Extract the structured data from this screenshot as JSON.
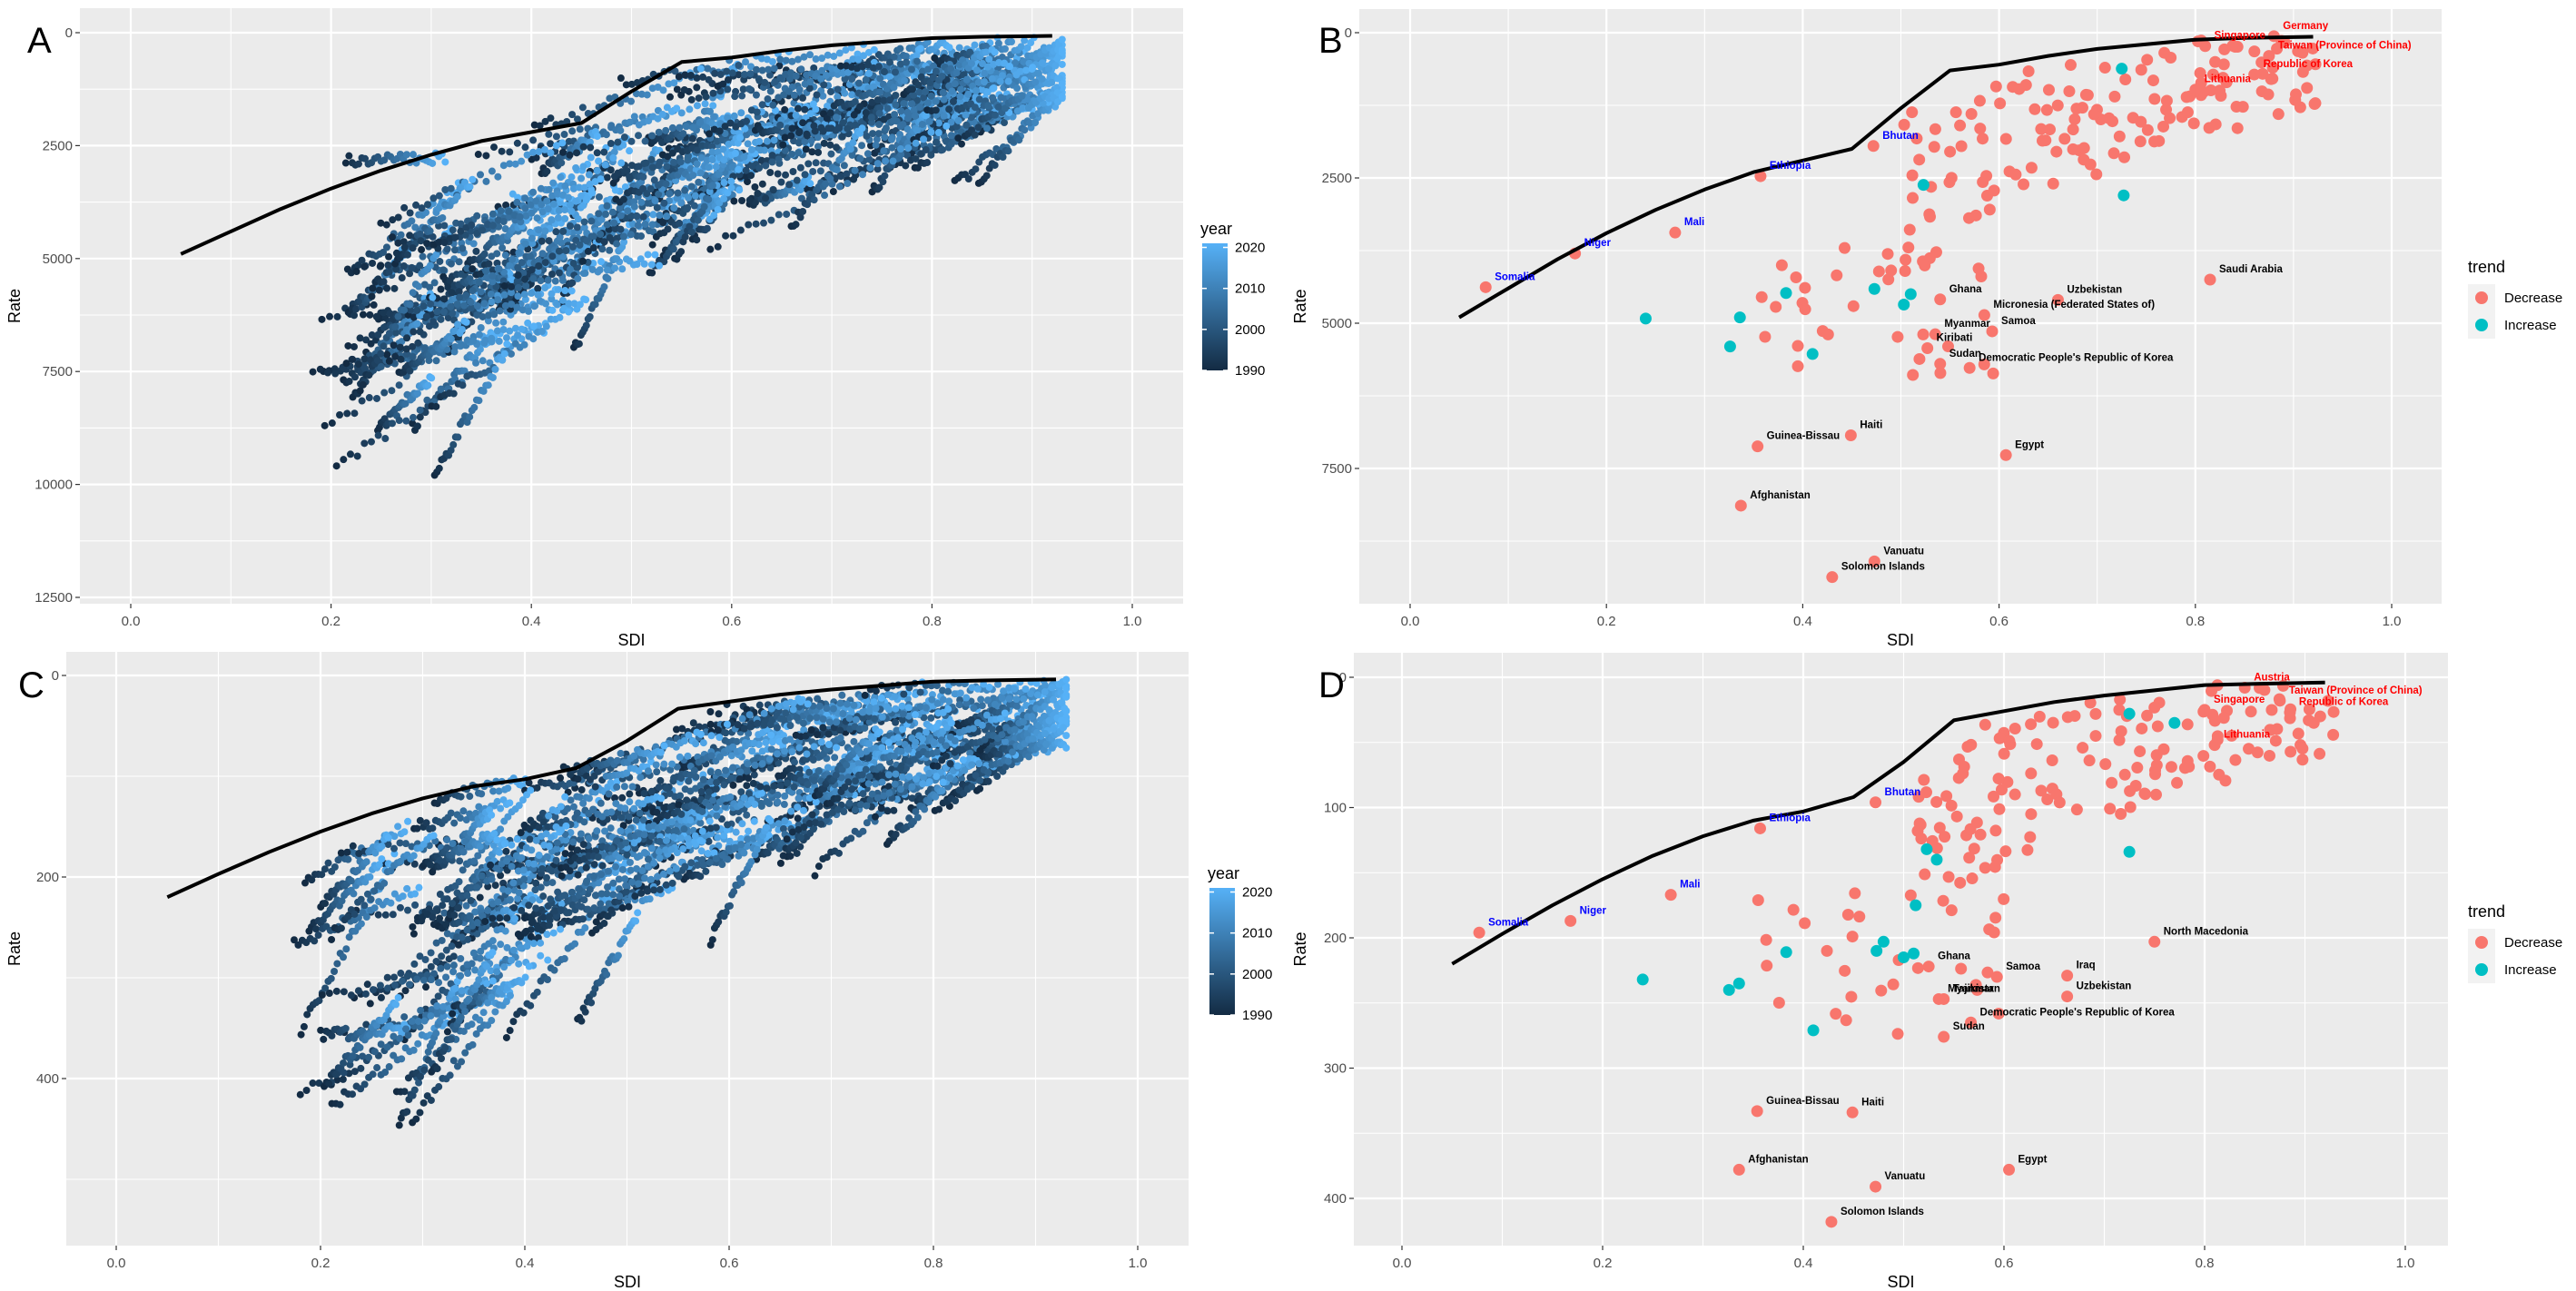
{
  "colors": {
    "panel_bg": "#EBEBEB",
    "year_low": "#132B43",
    "year_high": "#56B1F7",
    "decrease": "#F8766D",
    "increase": "#00BFC4",
    "label_high_sdi": "#FF0000",
    "label_low_sdi": "#0000FF",
    "label_other": "#000000",
    "frontier": "#000000"
  },
  "chart_data": [
    {
      "panel": "A",
      "type": "scatter",
      "title": "",
      "xlabel": "SDI",
      "ylabel": "Rate",
      "xlim": [
        -0.05,
        1.05
      ],
      "ylim": [
        12500,
        0
      ],
      "y_reversed": true,
      "x_ticks": [
        "0.0",
        "0.2",
        "0.4",
        "0.6",
        "0.8",
        "1.0"
      ],
      "x_tick_values": [
        0,
        0.2,
        0.4,
        0.6,
        0.8,
        1.0
      ],
      "y_ticks": [
        "0",
        "2500",
        "5000",
        "7500",
        "10000",
        "12500"
      ],
      "y_tick_values": [
        0,
        2500,
        5000,
        7500,
        10000,
        12500
      ],
      "grid": true,
      "legend": {
        "title": "year",
        "type": "colorbar",
        "position": "right",
        "labels": [
          "2020",
          "2010",
          "2000",
          "1990"
        ],
        "values": [
          2020,
          2010,
          2000,
          1990
        ],
        "range": [
          1990,
          2021
        ]
      },
      "frontier": {
        "x": [
          0.05,
          0.1,
          0.15,
          0.2,
          0.25,
          0.3,
          0.35,
          0.4,
          0.45,
          0.5,
          0.55,
          0.6,
          0.65,
          0.7,
          0.75,
          0.8,
          0.85,
          0.92
        ],
        "y": [
          4900,
          4400,
          3900,
          3450,
          3050,
          2700,
          2400,
          2200,
          2000,
          1300,
          650,
          550,
          400,
          280,
          200,
          120,
          90,
          70
        ]
      },
      "series_description": "Country trajectories 1990-2021, points colored by year"
    },
    {
      "panel": "B",
      "type": "scatter",
      "title": "",
      "xlabel": "SDI",
      "ylabel": "Rate",
      "xlim": [
        -0.05,
        1.05
      ],
      "ylim": [
        9500,
        0
      ],
      "y_reversed": true,
      "x_ticks": [
        "0.0",
        "0.2",
        "0.4",
        "0.6",
        "0.8",
        "1.0"
      ],
      "x_tick_values": [
        0,
        0.2,
        0.4,
        0.6,
        0.8,
        1.0
      ],
      "y_ticks": [
        "0",
        "2500",
        "5000",
        "7500"
      ],
      "y_tick_values": [
        0,
        2500,
        5000,
        7500
      ],
      "grid": true,
      "legend": {
        "title": "trend",
        "type": "discrete",
        "position": "right",
        "entries": [
          "Decrease",
          "Increase"
        ]
      },
      "frontier": {
        "x": [
          0.05,
          0.1,
          0.15,
          0.2,
          0.25,
          0.3,
          0.35,
          0.4,
          0.45,
          0.5,
          0.55,
          0.6,
          0.65,
          0.7,
          0.75,
          0.8,
          0.85,
          0.92
        ],
        "y": [
          4900,
          4400,
          3900,
          3450,
          3050,
          2700,
          2400,
          2200,
          2000,
          1300,
          650,
          550,
          400,
          280,
          200,
          120,
          90,
          70
        ]
      },
      "labeled_points": [
        {
          "name": "Germany",
          "x": 0.88,
          "y": 60,
          "trend": "Decrease",
          "group": "high"
        },
        {
          "name": "Singapore",
          "x": 0.81,
          "y": 230,
          "trend": "Decrease",
          "group": "high"
        },
        {
          "name": "Taiwan (Province of China)",
          "x": 0.875,
          "y": 400,
          "trend": "Decrease",
          "group": "high"
        },
        {
          "name": "Republic of Korea",
          "x": 0.86,
          "y": 720,
          "trend": "Decrease",
          "group": "high"
        },
        {
          "name": "Lithuania",
          "x": 0.8,
          "y": 980,
          "trend": "Decrease",
          "group": "high"
        },
        {
          "name": "Somalia",
          "x": 0.077,
          "y": 4380,
          "trend": "Decrease",
          "group": "low"
        },
        {
          "name": "Niger",
          "x": 0.168,
          "y": 3800,
          "trend": "Decrease",
          "group": "low"
        },
        {
          "name": "Mali",
          "x": 0.27,
          "y": 3440,
          "trend": "Decrease",
          "group": "low"
        },
        {
          "name": "Ethiopia",
          "x": 0.357,
          "y": 2470,
          "trend": "Decrease",
          "group": "low"
        },
        {
          "name": "Bhutan",
          "x": 0.472,
          "y": 1950,
          "trend": "Decrease",
          "group": "low"
        },
        {
          "name": "Saudi Arabia",
          "x": 0.815,
          "y": 4250,
          "trend": "Decrease",
          "group": "other"
        },
        {
          "name": "Uzbekistan",
          "x": 0.66,
          "y": 4600,
          "trend": "Decrease",
          "group": "other"
        },
        {
          "name": "Ghana",
          "x": 0.54,
          "y": 4590,
          "trend": "Decrease",
          "group": "other"
        },
        {
          "name": "Myanmar",
          "x": 0.535,
          "y": 5190,
          "trend": "Decrease",
          "group": "other"
        },
        {
          "name": "Micronesia (Federated States of)",
          "x": 0.585,
          "y": 4860,
          "trend": "Decrease",
          "group": "other"
        },
        {
          "name": "Kiribati",
          "x": 0.527,
          "y": 5430,
          "trend": "Decrease",
          "group": "other"
        },
        {
          "name": "Samoa",
          "x": 0.593,
          "y": 5140,
          "trend": "Decrease",
          "group": "other"
        },
        {
          "name": "Sudan",
          "x": 0.54,
          "y": 5700,
          "trend": "Decrease",
          "group": "other"
        },
        {
          "name": "Democratic People's Republic of Korea",
          "x": 0.57,
          "y": 5770,
          "trend": "Decrease",
          "group": "other"
        },
        {
          "name": "Haiti",
          "x": 0.449,
          "y": 6930,
          "trend": "Decrease",
          "group": "other"
        },
        {
          "name": "Guinea-Bissau",
          "x": 0.354,
          "y": 7120,
          "trend": "Decrease",
          "group": "other"
        },
        {
          "name": "Egypt",
          "x": 0.607,
          "y": 7270,
          "trend": "Decrease",
          "group": "other"
        },
        {
          "name": "Afghanistan",
          "x": 0.337,
          "y": 8140,
          "trend": "Decrease",
          "group": "other"
        },
        {
          "name": "Vanuatu",
          "x": 0.473,
          "y": 9100,
          "trend": "Decrease",
          "group": "other"
        },
        {
          "name": "Solomon Islands",
          "x": 0.43,
          "y": 9370,
          "trend": "Decrease",
          "group": "other"
        }
      ],
      "increase_points": [
        {
          "x": 0.725,
          "y": 620
        },
        {
          "x": 0.523,
          "y": 2620
        },
        {
          "x": 0.727,
          "y": 2800
        },
        {
          "x": 0.24,
          "y": 4920
        },
        {
          "x": 0.336,
          "y": 4900
        },
        {
          "x": 0.383,
          "y": 4480
        },
        {
          "x": 0.473,
          "y": 4410
        },
        {
          "x": 0.51,
          "y": 4500
        },
        {
          "x": 0.503,
          "y": 4680
        },
        {
          "x": 0.326,
          "y": 5400
        },
        {
          "x": 0.41,
          "y": 5530
        }
      ]
    },
    {
      "panel": "C",
      "type": "scatter",
      "title": "",
      "xlabel": "SDI",
      "ylabel": "Rate",
      "xlim": [
        -0.05,
        1.05
      ],
      "ylim": [
        560,
        0
      ],
      "y_reversed": true,
      "x_ticks": [
        "0.0",
        "0.2",
        "0.4",
        "0.6",
        "0.8",
        "1.0"
      ],
      "x_tick_values": [
        0,
        0.2,
        0.4,
        0.6,
        0.8,
        1.0
      ],
      "y_ticks": [
        "0",
        "200",
        "400"
      ],
      "y_tick_values": [
        0,
        200,
        400
      ],
      "grid": true,
      "legend": {
        "title": "year",
        "type": "colorbar",
        "position": "right",
        "labels": [
          "2020",
          "2010",
          "2000",
          "1990"
        ],
        "values": [
          2020,
          2010,
          2000,
          1990
        ],
        "range": [
          1990,
          2021
        ]
      },
      "frontier": {
        "x": [
          0.05,
          0.1,
          0.15,
          0.2,
          0.25,
          0.3,
          0.35,
          0.4,
          0.45,
          0.5,
          0.55,
          0.6,
          0.65,
          0.7,
          0.75,
          0.8,
          0.85,
          0.92
        ],
        "y": [
          220,
          197,
          175,
          155,
          137,
          122,
          110,
          103,
          92,
          65,
          33,
          26,
          19,
          14,
          10,
          6,
          5,
          4
        ]
      },
      "series_description": "Country trajectories 1990-2021, points colored by year"
    },
    {
      "panel": "D",
      "type": "scatter",
      "title": "",
      "xlabel": "SDI",
      "ylabel": "Rate",
      "xlim": [
        -0.05,
        1.05
      ],
      "ylim": [
        435,
        0
      ],
      "y_reversed": true,
      "x_ticks": [
        "0.0",
        "0.2",
        "0.4",
        "0.6",
        "0.8",
        "1.0"
      ],
      "x_tick_values": [
        0,
        0.2,
        0.4,
        0.6,
        0.8,
        1.0
      ],
      "y_ticks": [
        "0",
        "100",
        "200",
        "300",
        "400"
      ],
      "y_tick_values": [
        0,
        100,
        200,
        300,
        400
      ],
      "grid": true,
      "legend": {
        "title": "trend",
        "type": "discrete",
        "position": "right",
        "entries": [
          "Decrease",
          "Increase"
        ]
      },
      "frontier": {
        "x": [
          0.05,
          0.1,
          0.15,
          0.2,
          0.25,
          0.3,
          0.35,
          0.4,
          0.45,
          0.5,
          0.55,
          0.6,
          0.65,
          0.7,
          0.75,
          0.8,
          0.85,
          0.92
        ],
        "y": [
          220,
          197,
          175,
          155,
          137,
          122,
          110,
          103,
          92,
          65,
          33,
          26,
          19,
          14,
          10,
          6,
          5,
          4
        ]
      },
      "labeled_points": [
        {
          "name": "Austria",
          "x": 0.84,
          "y": 8,
          "trend": "Decrease",
          "group": "high"
        },
        {
          "name": "Singapore",
          "x": 0.8,
          "y": 25,
          "trend": "Decrease",
          "group": "high"
        },
        {
          "name": "Taiwan (Province of China)",
          "x": 0.875,
          "y": 18,
          "trend": "Decrease",
          "group": "high"
        },
        {
          "name": "Republic of Korea",
          "x": 0.885,
          "y": 27,
          "trend": "Decrease",
          "group": "high"
        },
        {
          "name": "Lithuania",
          "x": 0.81,
          "y": 52,
          "trend": "Decrease",
          "group": "high"
        },
        {
          "name": "Somalia",
          "x": 0.077,
          "y": 196,
          "trend": "Decrease",
          "group": "low"
        },
        {
          "name": "Niger",
          "x": 0.168,
          "y": 187,
          "trend": "Decrease",
          "group": "low"
        },
        {
          "name": "Mali",
          "x": 0.268,
          "y": 167,
          "trend": "Decrease",
          "group": "low"
        },
        {
          "name": "Ethiopia",
          "x": 0.357,
          "y": 116,
          "trend": "Decrease",
          "group": "low"
        },
        {
          "name": "Bhutan",
          "x": 0.472,
          "y": 96,
          "trend": "Decrease",
          "group": "low"
        },
        {
          "name": "North Macedonia",
          "x": 0.75,
          "y": 203,
          "trend": "Decrease",
          "group": "other"
        },
        {
          "name": "Ghana",
          "x": 0.525,
          "y": 222,
          "trend": "Decrease",
          "group": "other"
        },
        {
          "name": "Samoa",
          "x": 0.593,
          "y": 230,
          "trend": "Decrease",
          "group": "other"
        },
        {
          "name": "Iraq",
          "x": 0.663,
          "y": 229,
          "trend": "Decrease",
          "group": "other"
        },
        {
          "name": "Uzbekistan",
          "x": 0.663,
          "y": 245,
          "trend": "Decrease",
          "group": "other"
        },
        {
          "name": "Myanmar",
          "x": 0.535,
          "y": 247,
          "trend": "Decrease",
          "group": "other"
        },
        {
          "name": "Tajikistan",
          "x": 0.54,
          "y": 247,
          "trend": "Decrease",
          "group": "other"
        },
        {
          "name": "Democratic People's Republic of Korea",
          "x": 0.567,
          "y": 265,
          "trend": "Decrease",
          "group": "other"
        },
        {
          "name": "Sudan",
          "x": 0.54,
          "y": 276,
          "trend": "Decrease",
          "group": "other"
        },
        {
          "name": "Guinea-Bissau",
          "x": 0.354,
          "y": 333,
          "trend": "Decrease",
          "group": "other"
        },
        {
          "name": "Haiti",
          "x": 0.449,
          "y": 334,
          "trend": "Decrease",
          "group": "other"
        },
        {
          "name": "Afghanistan",
          "x": 0.336,
          "y": 378,
          "trend": "Decrease",
          "group": "other"
        },
        {
          "name": "Vanuatu",
          "x": 0.472,
          "y": 391,
          "trend": "Decrease",
          "group": "other"
        },
        {
          "name": "Egypt",
          "x": 0.605,
          "y": 378,
          "trend": "Decrease",
          "group": "other"
        },
        {
          "name": "Solomon Islands",
          "x": 0.428,
          "y": 418,
          "trend": "Decrease",
          "group": "other"
        }
      ],
      "increase_points": [
        {
          "x": 0.725,
          "y": 28
        },
        {
          "x": 0.77,
          "y": 35
        },
        {
          "x": 0.523,
          "y": 132
        },
        {
          "x": 0.533,
          "y": 140
        },
        {
          "x": 0.725,
          "y": 134
        },
        {
          "x": 0.512,
          "y": 175
        },
        {
          "x": 0.48,
          "y": 203
        },
        {
          "x": 0.383,
          "y": 211
        },
        {
          "x": 0.473,
          "y": 210
        },
        {
          "x": 0.51,
          "y": 212
        },
        {
          "x": 0.5,
          "y": 215
        },
        {
          "x": 0.24,
          "y": 232
        },
        {
          "x": 0.336,
          "y": 235
        },
        {
          "x": 0.326,
          "y": 240
        },
        {
          "x": 0.41,
          "y": 271
        }
      ]
    }
  ]
}
